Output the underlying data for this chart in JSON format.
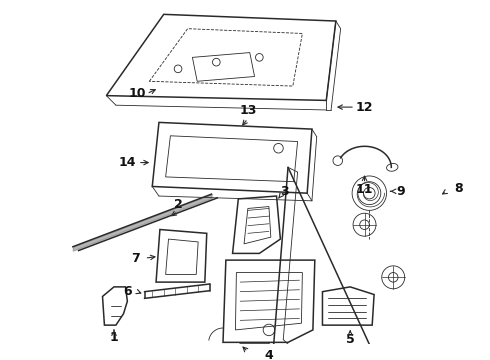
{
  "bg_color": "#ffffff",
  "line_color": "#2a2a2a",
  "lw_main": 1.1,
  "lw_thin": 0.6,
  "lw_thick": 1.8,
  "label_fs": 9,
  "figw": 4.9,
  "figh": 3.6,
  "dpi": 100
}
